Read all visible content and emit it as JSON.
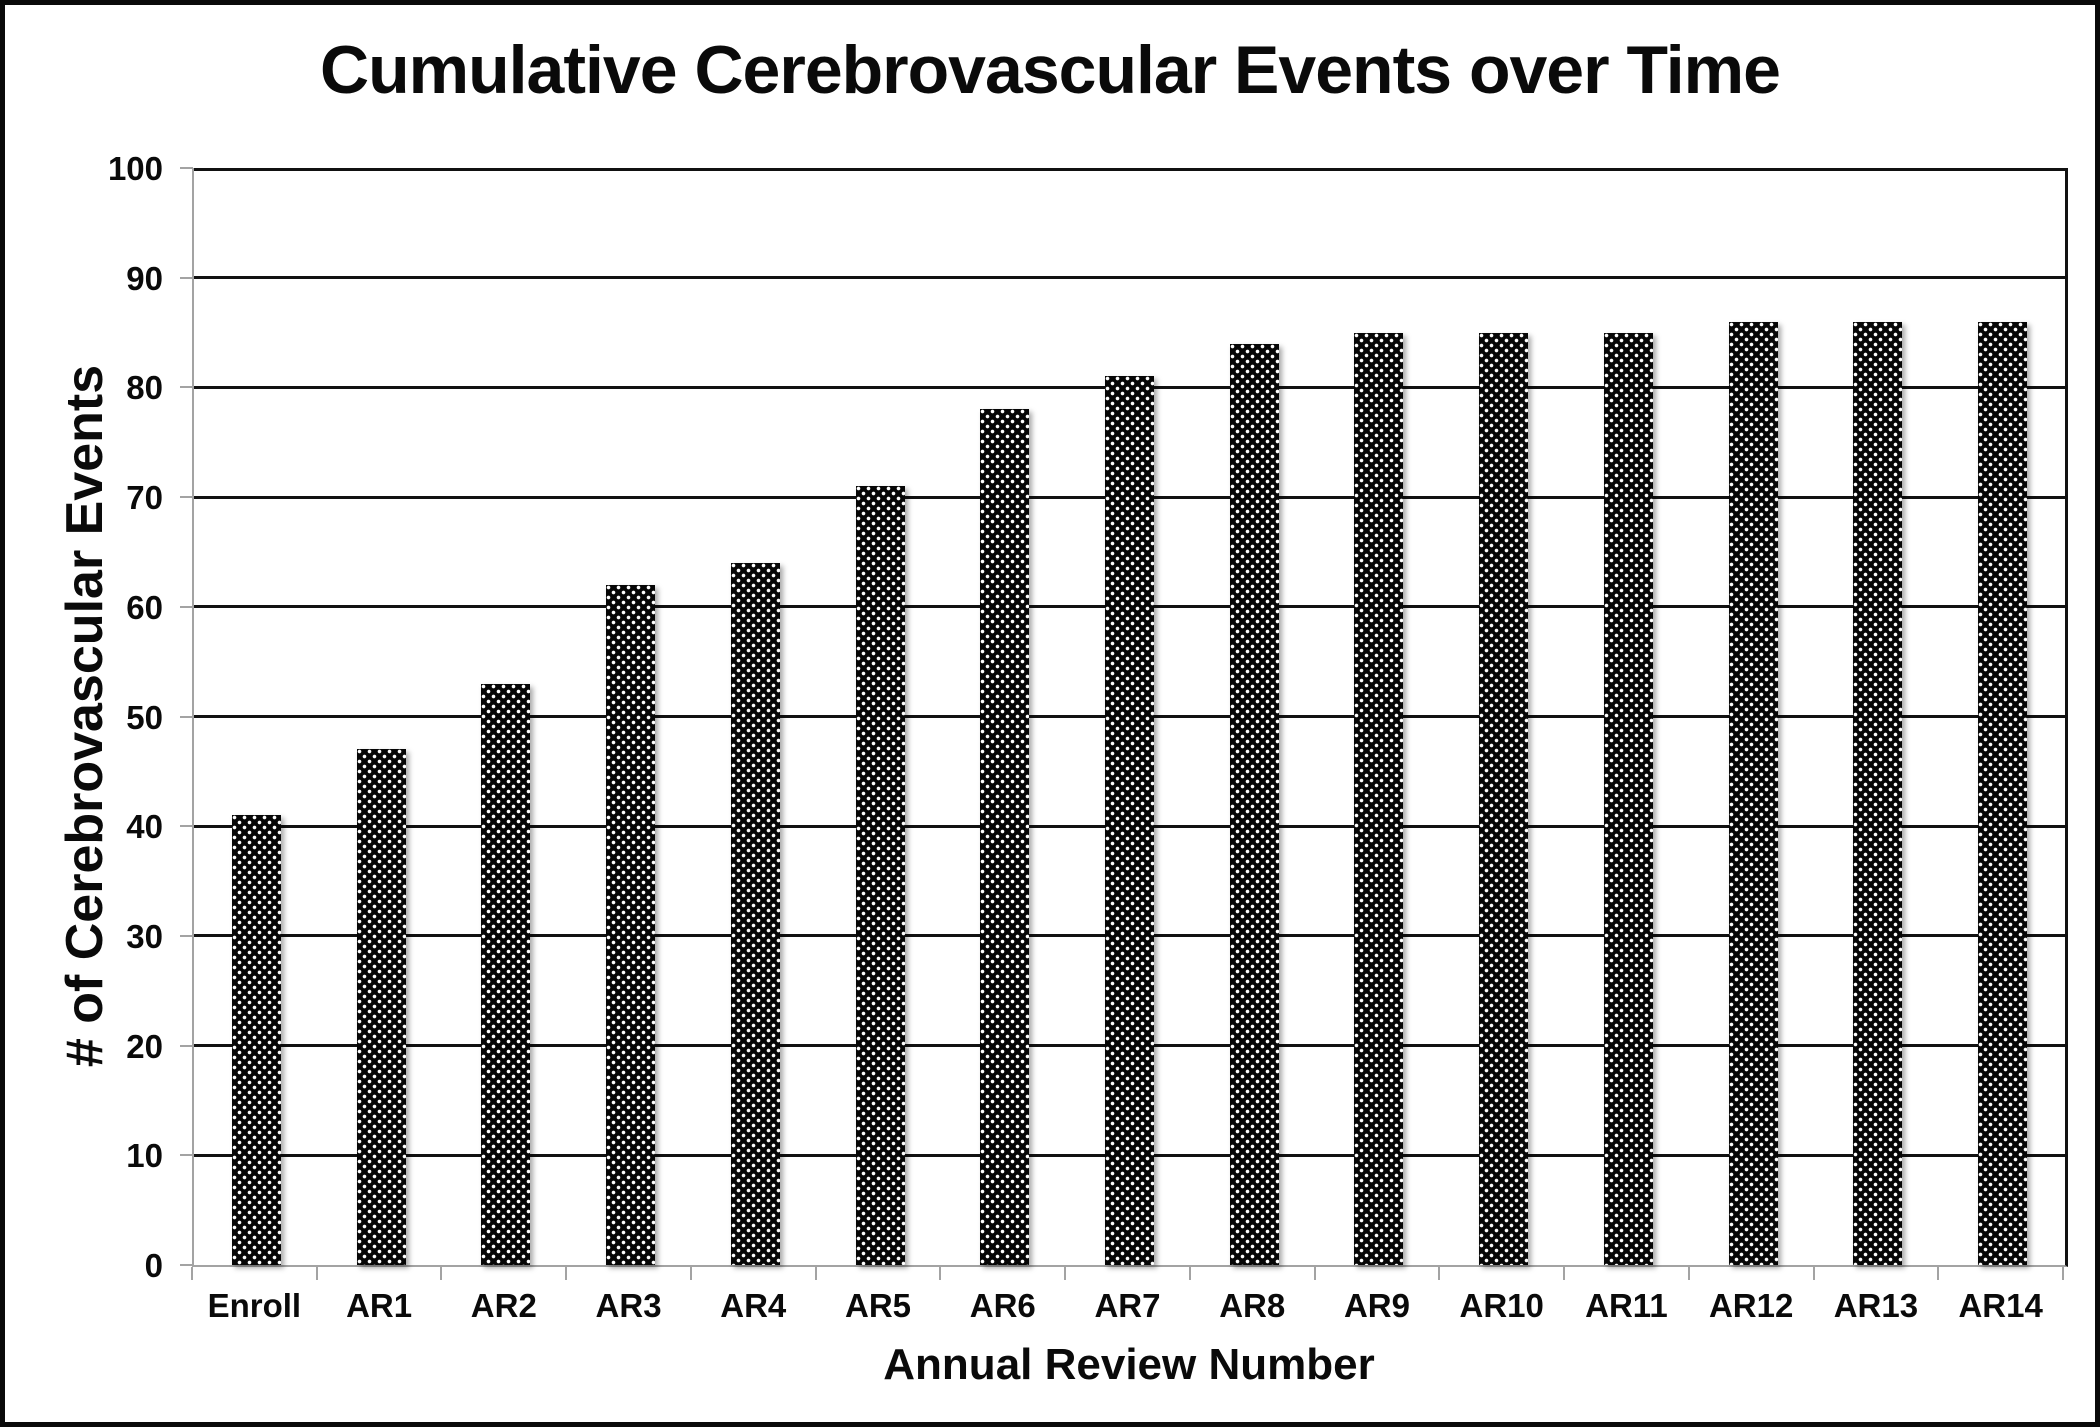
{
  "title": "Cumulative Cerebrovascular Events over Time",
  "chart_data": {
    "type": "bar",
    "title": "Cumulative Cerebrovascular Events over Time",
    "xlabel": "Annual Review Number",
    "ylabel": "# of Cerebrovascular Events",
    "categories": [
      "Enroll",
      "AR1",
      "AR2",
      "AR3",
      "AR4",
      "AR5",
      "AR6",
      "AR7",
      "AR8",
      "AR9",
      "AR10",
      "AR11",
      "AR12",
      "AR13",
      "AR14"
    ],
    "values": [
      41,
      47,
      53,
      62,
      64,
      71,
      78,
      81,
      84,
      85,
      85,
      85,
      86,
      86,
      86
    ],
    "ylim": [
      0,
      100
    ],
    "yticks": [
      0,
      10,
      20,
      30,
      40,
      50,
      60,
      70,
      80,
      90,
      100
    ],
    "grid": "horizontal",
    "legend": "none",
    "bar_fill": "black with white polka dots",
    "colors": {
      "bar": "#060606",
      "dot": "#ffffff",
      "gridline": "#111111",
      "axis_line": "#a3a3a3",
      "text": "#0a0a0a",
      "frame": "#0a0a0a",
      "background": "#ffffff"
    }
  }
}
